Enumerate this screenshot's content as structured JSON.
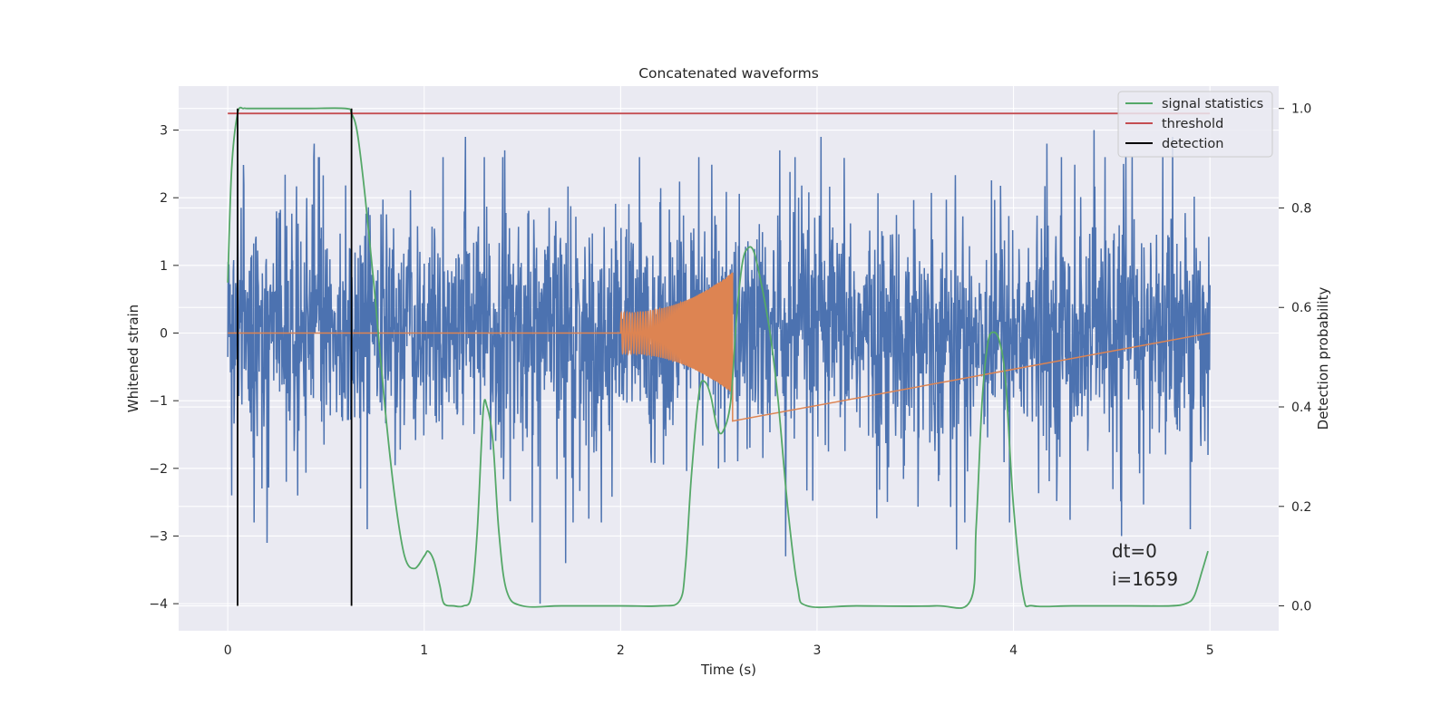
{
  "chart_data": {
    "type": "line",
    "title": "Concatenated waveforms",
    "xlabel": "Time (s)",
    "ylabel": "Whitened strain",
    "ylabel_right": "Detection probability",
    "xlim": [
      -0.25,
      5.35
    ],
    "ylim": [
      -4.4,
      3.65
    ],
    "ylim_right": [
      -0.05,
      1.045
    ],
    "x_ticks": [
      0,
      1,
      2,
      3,
      4,
      5
    ],
    "y_ticks": [
      -4,
      -3,
      -2,
      -1,
      0,
      1,
      2,
      3
    ],
    "y_ticks_right": [
      0.0,
      0.2,
      0.4,
      0.6,
      0.8,
      1.0
    ],
    "x_tick_labels": [
      "0",
      "1",
      "2",
      "3",
      "4",
      "5"
    ],
    "y_tick_labels": [
      "−4",
      "−3",
      "−2",
      "−1",
      "0",
      "1",
      "2",
      "3"
    ],
    "y_tick_labels_right": [
      "0.0",
      "0.2",
      "0.4",
      "0.6",
      "0.8",
      "1.0"
    ],
    "grid": true,
    "background": "#eaeaf2",
    "legend_position": "top-right",
    "series": [
      {
        "name": "",
        "axis": "left",
        "color": "#4c72b0",
        "kind": "noise",
        "x_range": [
          0,
          5
        ],
        "spread": 1.1,
        "peaks": [
          [
            0.05,
            2.5
          ],
          [
            0.02,
            -2.4
          ],
          [
            0.2,
            -3.1
          ],
          [
            0.44,
            2.8
          ],
          [
            0.71,
            -2.9
          ],
          [
            1.21,
            2.9
          ],
          [
            1.41,
            2.7
          ],
          [
            1.59,
            -4.0
          ],
          [
            1.72,
            3.25
          ],
          [
            1.72,
            -3.4
          ],
          [
            2.81,
            2.7
          ],
          [
            2.84,
            -3.3
          ],
          [
            3.02,
            2.9
          ],
          [
            3.71,
            -3.2
          ],
          [
            4.17,
            2.8
          ],
          [
            4.41,
            3.0
          ],
          [
            4.55,
            -3.0
          ],
          [
            4.81,
            2.9
          ],
          [
            4.9,
            -2.9
          ],
          [
            4.56,
            2.5
          ]
        ]
      },
      {
        "name": "",
        "axis": "left",
        "color": "#dd8452",
        "kind": "chirp",
        "x": [
          2.0,
          2.57
        ],
        "envelope_start": 0.3,
        "envelope_end": 0.9,
        "envelope_end_min": -1.3
      },
      {
        "name": "signal statistics",
        "axis": "right",
        "color": "#55a868",
        "x": [
          0,
          0.02,
          0.05,
          0.08,
          0.1,
          0.2,
          0.4,
          0.6,
          0.63,
          0.66,
          0.7,
          0.75,
          0.8,
          0.85,
          0.9,
          0.95,
          1.0,
          1.02,
          1.05,
          1.08,
          1.1,
          1.15,
          1.2,
          1.24,
          1.27,
          1.3,
          1.32,
          1.35,
          1.38,
          1.42,
          1.5,
          1.7,
          2.0,
          2.2,
          2.3,
          2.33,
          2.36,
          2.4,
          2.43,
          2.46,
          2.49,
          2.52,
          2.56,
          2.59,
          2.62,
          2.65,
          2.68,
          2.72,
          2.76,
          2.8,
          2.85,
          2.9,
          2.95,
          3.2,
          3.6,
          3.78,
          3.81,
          3.84,
          3.87,
          3.9,
          3.93,
          3.96,
          4.0,
          4.05,
          4.1,
          4.3,
          4.6,
          4.8,
          4.88,
          4.92,
          4.96,
          4.99
        ],
        "values": [
          0.65,
          0.88,
          0.99,
          1.0,
          1.0,
          1.0,
          1.0,
          1.0,
          0.99,
          0.95,
          0.82,
          0.62,
          0.4,
          0.22,
          0.1,
          0.075,
          0.1,
          0.11,
          0.09,
          0.04,
          0.005,
          0.0,
          0.0,
          0.02,
          0.15,
          0.39,
          0.4,
          0.33,
          0.15,
          0.03,
          0.0,
          0.0,
          0.0,
          0.0,
          0.01,
          0.08,
          0.26,
          0.43,
          0.45,
          0.42,
          0.36,
          0.35,
          0.41,
          0.58,
          0.69,
          0.72,
          0.71,
          0.64,
          0.55,
          0.42,
          0.2,
          0.04,
          0.0,
          0.0,
          0.0,
          0.01,
          0.16,
          0.41,
          0.53,
          0.55,
          0.53,
          0.45,
          0.2,
          0.02,
          0.0,
          0.0,
          0.0,
          0.0,
          0.005,
          0.02,
          0.07,
          0.11
        ]
      },
      {
        "name": "threshold",
        "axis": "right",
        "color": "#c44e52",
        "x": [
          0,
          5
        ],
        "values": [
          0.99,
          0.99
        ]
      },
      {
        "name": "detection",
        "axis": "right",
        "color": "#000000",
        "kind": "vlines",
        "x": [
          0.05,
          0.63
        ],
        "ymin": 0.0,
        "ymax": 1.0
      }
    ],
    "annotation": {
      "lines": [
        "dt=0",
        "i=1659"
      ],
      "x": 4.5,
      "y_right": [
        0.11,
        0.065
      ]
    }
  }
}
